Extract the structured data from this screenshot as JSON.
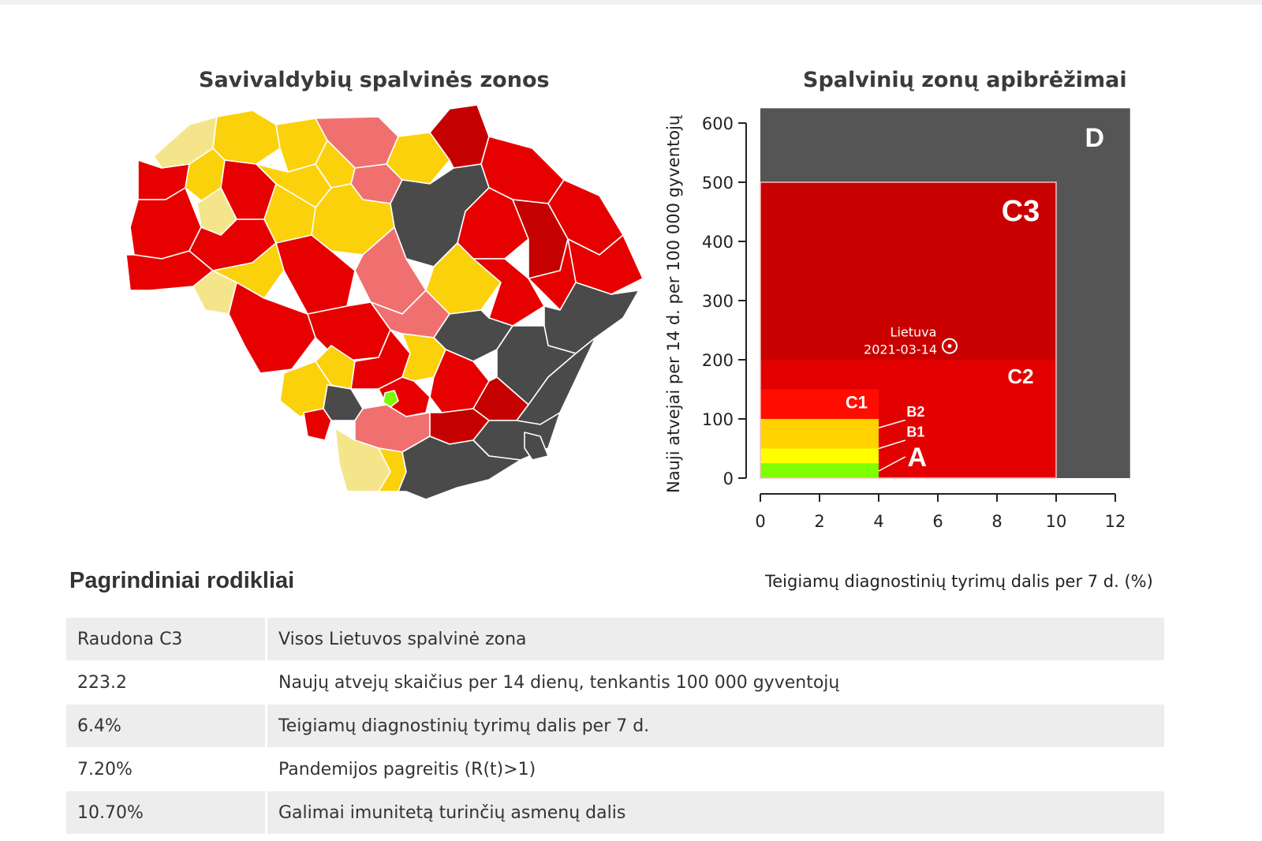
{
  "map": {
    "title": "Savivaldybių spalvinės zonos",
    "zone_colors": {
      "dark_gray": "#4a4a4a",
      "dark_red": "#c40000",
      "red": "#e60000",
      "salmon": "#f07070",
      "gold": "#fbd10b",
      "pale_yellow": "#f5e58a",
      "green": "#7cfc00"
    }
  },
  "chart_data": {
    "type": "area",
    "title": "Spalvinių zonų apibrėžimai",
    "xlabel": "Teigiamų diagnostinių tyrimų dalis per 7 d. (%)",
    "ylabel": "Nauji atvejai per 14 d. per 100 000 gyventojų",
    "xlim": [
      0,
      12
    ],
    "ylim": [
      0,
      600
    ],
    "x_ticks": [
      0,
      2,
      4,
      6,
      8,
      10,
      12
    ],
    "y_ticks": [
      0,
      100,
      200,
      300,
      400,
      500,
      600
    ],
    "zones": [
      {
        "name": "D",
        "x": [
          0,
          12.5
        ],
        "y": [
          0,
          625
        ],
        "color": "#555555"
      },
      {
        "name": "C3",
        "x": [
          0,
          10
        ],
        "y": [
          0,
          500
        ],
        "color": "#c80000"
      },
      {
        "name": "C2",
        "x": [
          0,
          10
        ],
        "y": [
          0,
          200
        ],
        "color": "#e30000"
      },
      {
        "name": "C1",
        "x": [
          0,
          4
        ],
        "y": [
          0,
          150
        ],
        "color": "#ff0d00"
      },
      {
        "name": "B2",
        "x": [
          0,
          4
        ],
        "y": [
          0,
          100
        ],
        "color": "#ffd200"
      },
      {
        "name": "B1",
        "x": [
          0,
          4
        ],
        "y": [
          0,
          50
        ],
        "color": "#ffff00"
      },
      {
        "name": "A",
        "x": [
          0,
          4
        ],
        "y": [
          0,
          25
        ],
        "color": "#80ff00"
      }
    ],
    "point": {
      "label": "Lietuva",
      "date": "2021-03-14",
      "x": 6.4,
      "y": 223.2
    }
  },
  "indicators": {
    "heading": "Pagrindiniai rodikliai",
    "rows": [
      {
        "value": "Raudona C3",
        "label": "Visos Lietuvos spalvinė zona"
      },
      {
        "value": "223.2",
        "label": "Naujų atvejų skaičius per 14 dienų, tenkantis 100 000 gyventojų"
      },
      {
        "value": "6.4%",
        "label": "Teigiamų diagnostinių tyrimų dalis per 7 d."
      },
      {
        "value": "7.20%",
        "label": "Pandemijos pagreitis (R(t)>1)"
      },
      {
        "value": "10.70%",
        "label": "Galimai imunitetą turinčių asmenų dalis"
      }
    ]
  }
}
